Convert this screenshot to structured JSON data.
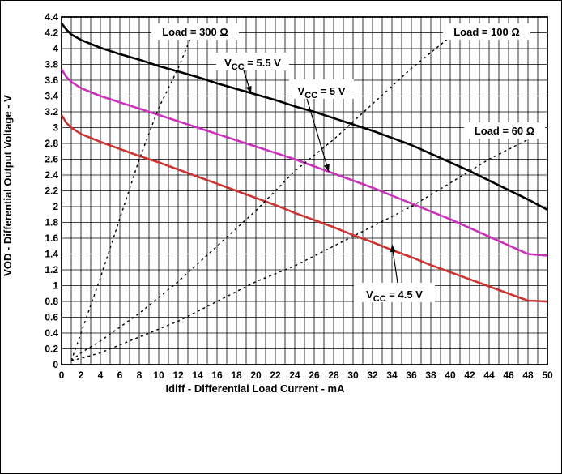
{
  "chart_data": {
    "type": "line",
    "xlabel": "Idiff - Differential Load Current  - mA",
    "ylabel": "VOD - Differential Output Voltage - V",
    "xlim": [
      0,
      50
    ],
    "ylim": [
      0,
      4.4
    ],
    "x_ticks": [
      0,
      2,
      4,
      6,
      8,
      10,
      12,
      14,
      16,
      18,
      20,
      22,
      24,
      26,
      28,
      30,
      32,
      34,
      36,
      38,
      40,
      42,
      44,
      46,
      48,
      50
    ],
    "y_ticks": [
      0,
      0.2,
      0.4,
      0.6,
      0.8,
      1,
      1.2,
      1.4,
      1.6,
      1.8,
      2,
      2.2,
      2.4,
      2.6,
      2.8,
      3,
      3.2,
      3.4,
      3.6,
      3.8,
      4,
      4.2,
      4.4
    ],
    "grid": true,
    "series": [
      {
        "name": "VCC = 5.5 V",
        "color": "#000000",
        "style": "solid",
        "x": [
          0,
          0.5,
          1,
          2,
          4,
          6,
          8,
          10,
          12,
          14,
          16,
          18,
          20,
          22,
          24,
          26,
          28,
          30,
          32,
          34,
          36,
          38,
          40,
          42,
          44,
          46,
          48,
          50
        ],
        "y": [
          4.32,
          4.24,
          4.18,
          4.11,
          4.01,
          3.93,
          3.86,
          3.78,
          3.71,
          3.64,
          3.56,
          3.49,
          3.42,
          3.35,
          3.27,
          3.2,
          3.12,
          3.04,
          2.96,
          2.87,
          2.78,
          2.67,
          2.56,
          2.45,
          2.33,
          2.21,
          2.09,
          1.96
        ]
      },
      {
        "name": "VCC = 5 V",
        "color": "#cc33bb",
        "style": "solid",
        "x": [
          0,
          0.5,
          1,
          2,
          4,
          6,
          8,
          10,
          12,
          14,
          16,
          18,
          20,
          22,
          24,
          26,
          28,
          30,
          32,
          34,
          36,
          38,
          40,
          42,
          44,
          46,
          48,
          50
        ],
        "y": [
          3.74,
          3.64,
          3.58,
          3.5,
          3.4,
          3.32,
          3.24,
          3.16,
          3.08,
          3.0,
          2.92,
          2.84,
          2.76,
          2.68,
          2.6,
          2.51,
          2.42,
          2.33,
          2.24,
          2.14,
          2.04,
          1.94,
          1.84,
          1.73,
          1.62,
          1.51,
          1.4,
          1.38
        ]
      },
      {
        "name": "VCC = 4.5 V",
        "color": "#cc3333",
        "style": "solid",
        "x": [
          0,
          0.5,
          1,
          2,
          4,
          6,
          8,
          10,
          12,
          14,
          16,
          18,
          20,
          22,
          24,
          26,
          28,
          30,
          32,
          34,
          36,
          38,
          40,
          42,
          44,
          46,
          48,
          50
        ],
        "y": [
          3.16,
          3.06,
          3.0,
          2.92,
          2.82,
          2.73,
          2.64,
          2.56,
          2.47,
          2.38,
          2.29,
          2.2,
          2.11,
          2.02,
          1.92,
          1.83,
          1.74,
          1.64,
          1.55,
          1.45,
          1.36,
          1.26,
          1.17,
          1.08,
          0.99,
          0.9,
          0.81,
          0.8
        ]
      },
      {
        "name": "Load = 300 Ω",
        "color": "#000000",
        "style": "dashed",
        "x": [
          1,
          2,
          4,
          6,
          8,
          10,
          12,
          13.9
        ],
        "y": [
          0.05,
          0.4,
          1.1,
          1.85,
          2.6,
          3.25,
          3.75,
          4.32
        ]
      },
      {
        "name": "Load = 100 Ω",
        "color": "#000000",
        "style": "dashed",
        "x": [
          1,
          2,
          4,
          8,
          12,
          16,
          20,
          24,
          28,
          32,
          36,
          40,
          41.5
        ],
        "y": [
          0.05,
          0.15,
          0.3,
          0.65,
          1.05,
          1.5,
          1.95,
          2.45,
          2.85,
          3.3,
          3.75,
          4.15,
          4.3
        ]
      },
      {
        "name": "Load = 60 Ω",
        "color": "#000000",
        "style": "dashed",
        "x": [
          1,
          2,
          4,
          8,
          12,
          16,
          20,
          24,
          28,
          32,
          36,
          40,
          44,
          48,
          49.5
        ],
        "y": [
          0.05,
          0.08,
          0.15,
          0.35,
          0.55,
          0.8,
          1.05,
          1.25,
          1.5,
          1.75,
          2.0,
          2.3,
          2.6,
          2.85,
          2.95
        ]
      }
    ],
    "annotations": [
      {
        "id": "vcc55",
        "prefix": "V",
        "sub": "CC",
        "suffix": " = 5.5 V",
        "point_x": 19.5,
        "point_y": 3.43
      },
      {
        "id": "vcc5",
        "prefix": "V",
        "sub": "CC",
        "suffix": " = 5 V",
        "point_x": 27.5,
        "point_y": 2.44
      },
      {
        "id": "vcc45",
        "prefix": "V",
        "sub": "CC",
        "suffix": " = 4.5 V",
        "point_x": 34,
        "point_y": 1.52
      },
      {
        "id": "load300",
        "text": "Load = 300 Ω"
      },
      {
        "id": "load100",
        "text": "Load = 100 Ω"
      },
      {
        "id": "load60",
        "text": "Load = 60 Ω"
      }
    ]
  }
}
